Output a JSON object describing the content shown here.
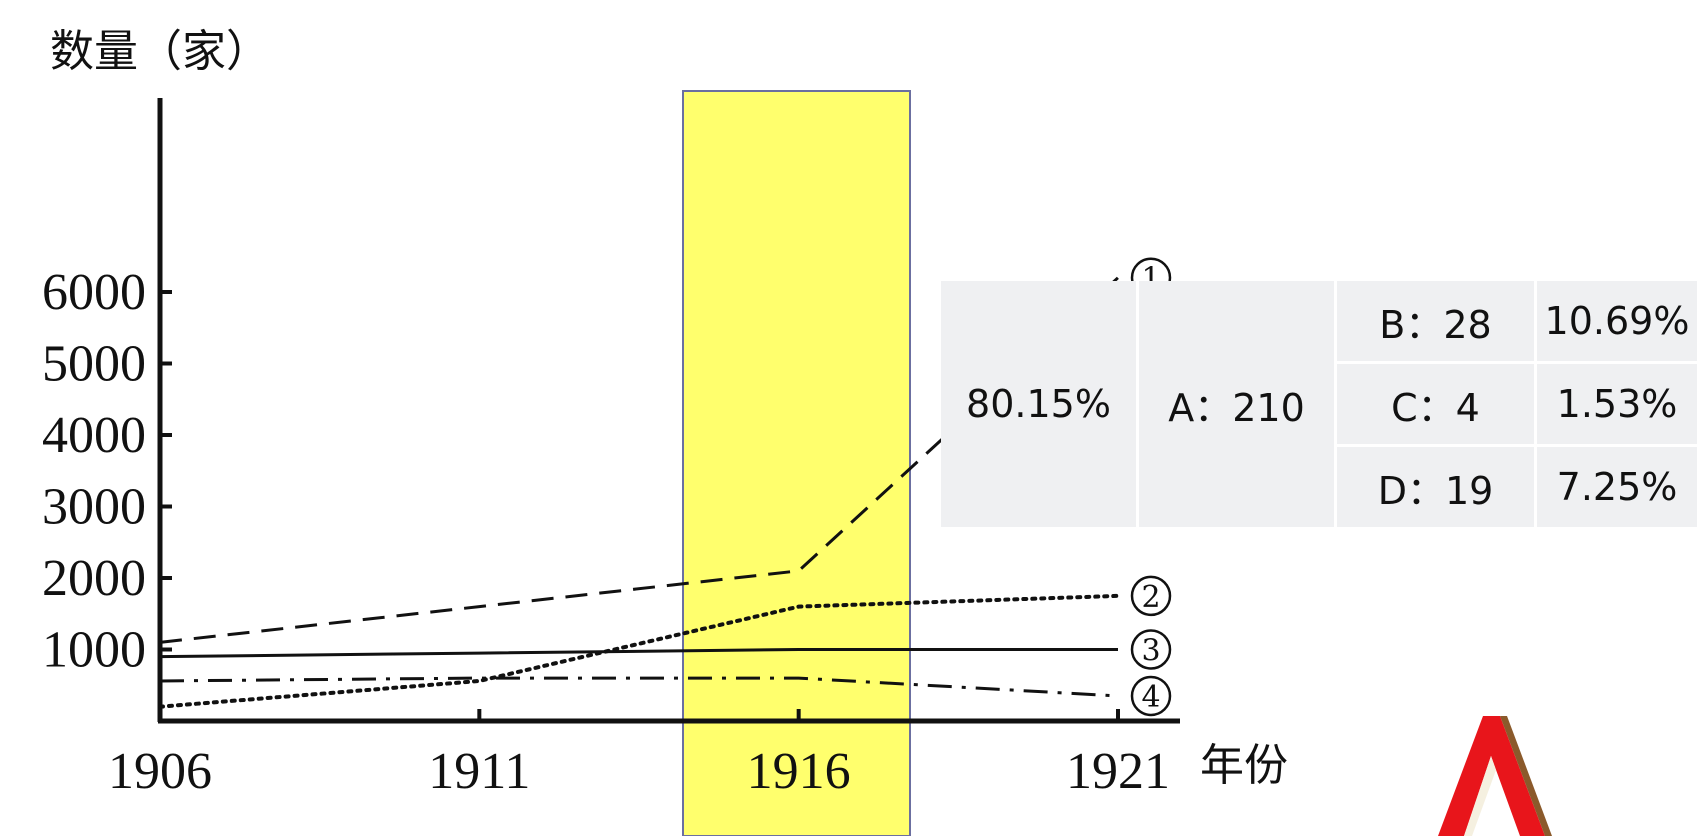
{
  "chart_data": {
    "type": "line",
    "ylabel": "数量（家）",
    "xlabel": "年份",
    "x": [
      1906,
      1911,
      1916,
      1921
    ],
    "ylim": [
      0,
      6000
    ],
    "yticks": [
      1000,
      2000,
      3000,
      4000,
      5000,
      6000
    ],
    "series": [
      {
        "name": "①",
        "style": "dashed",
        "values": [
          1100,
          1600,
          2100,
          6200
        ]
      },
      {
        "name": "②",
        "style": "dotted",
        "values": [
          200,
          560,
          1600,
          1750
        ]
      },
      {
        "name": "③",
        "style": "solid",
        "values": [
          900,
          950,
          1000,
          1000
        ]
      },
      {
        "name": "④",
        "style": "dashdot",
        "values": [
          560,
          600,
          600,
          350
        ]
      }
    ],
    "highlight": {
      "x": 1916,
      "color": "#ffff4d"
    }
  },
  "table": {
    "share": "80.15%",
    "a": "A：210",
    "rows": [
      {
        "label": "B：28",
        "pct": "10.69%"
      },
      {
        "label": "C：4",
        "pct": "1.53%"
      },
      {
        "label": "D：19",
        "pct": "7.25%"
      }
    ]
  },
  "colors": {
    "highlight": "#ffff4d",
    "logo_red": "#e8151b",
    "logo_brown": "#8b5a2b"
  },
  "logo": {
    "icon": "red-a-logo-icon"
  }
}
